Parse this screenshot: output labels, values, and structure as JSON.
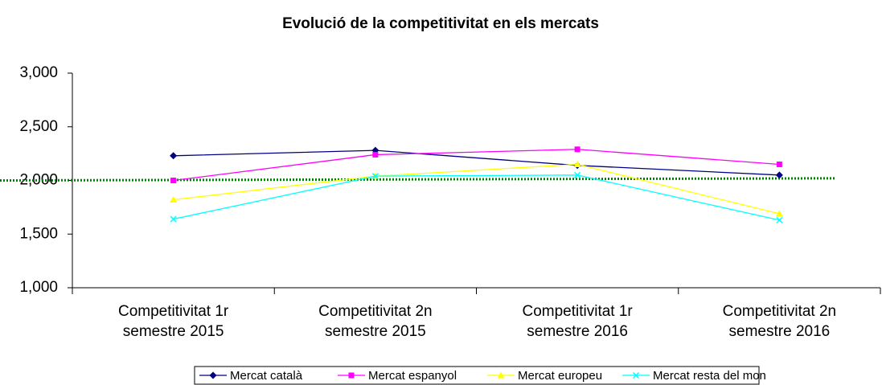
{
  "chart_data": {
    "type": "line",
    "title": "Evolució de la competitivitat en els mercats",
    "categories": [
      "Competitivitat 1r semestre 2015",
      "Competitivitat 2n semestre 2015",
      "Competitivitat 1r semestre 2016",
      "Competitivitat 2n semestre 2016"
    ],
    "series": [
      {
        "name": "Mercat català",
        "color": "#000080",
        "marker": "diamond",
        "values": [
          2.23,
          2.28,
          2.14,
          2.05
        ]
      },
      {
        "name": "Mercat espanyol",
        "color": "#ff00ff",
        "marker": "square",
        "values": [
          2.0,
          2.24,
          2.29,
          2.15
        ]
      },
      {
        "name": "Mercat europeu",
        "color": "#ffff00",
        "marker": "triangle",
        "values": [
          1.82,
          2.04,
          2.15,
          1.69
        ]
      },
      {
        "name": "Mercat resta del mon",
        "color": "#00ffff",
        "marker": "x",
        "values": [
          1.64,
          2.04,
          2.05,
          1.63
        ]
      }
    ],
    "reference_line": {
      "color": "#008000",
      "values": [
        2.0,
        2.02
      ]
    },
    "ylim": [
      1,
      3
    ],
    "yticks": [
      {
        "value": 1,
        "label": "1,000"
      },
      {
        "value": 1.5,
        "label": "1,500"
      },
      {
        "value": 2,
        "label": "2,000"
      },
      {
        "value": 2.5,
        "label": "2,500"
      },
      {
        "value": 3,
        "label": "3,000"
      }
    ],
    "legend": "bottom"
  }
}
